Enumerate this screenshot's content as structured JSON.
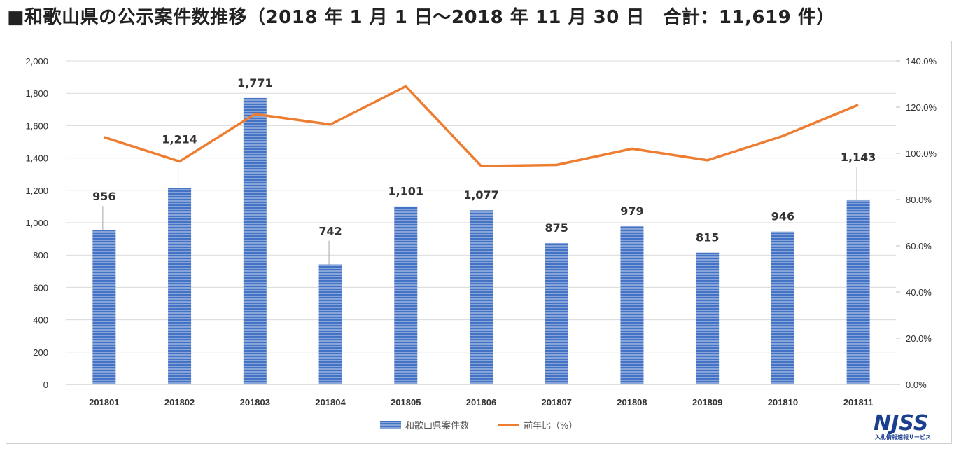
{
  "title": "■和歌山県の公示案件数推移（2018 年 1 月 1 日～2018 年 11 月 30 日　合計：11,619 件）",
  "colors": {
    "bar": "#4472c4",
    "line": "#ed7d31",
    "grid": "#d9d9d9"
  },
  "chart_data": {
    "type": "bar",
    "categories": [
      "201801",
      "201802",
      "201803",
      "201804",
      "201805",
      "201806",
      "201807",
      "201808",
      "201809",
      "201810",
      "201811"
    ],
    "series": [
      {
        "name": "和歌山県案件数",
        "type": "bar",
        "axis": "left",
        "values": [
          956,
          1214,
          1771,
          742,
          1101,
          1077,
          875,
          979,
          815,
          946,
          1143
        ],
        "labels": [
          "956",
          "1,214",
          "1,771",
          "742",
          "1,101",
          "1,077",
          "875",
          "979",
          "815",
          "946",
          "1,143"
        ]
      },
      {
        "name": "前年比（%）",
        "type": "line",
        "axis": "right",
        "values": [
          107,
          96.5,
          117,
          112.5,
          129,
          94.5,
          95,
          102,
          97,
          107.5,
          121
        ]
      }
    ],
    "y_left": {
      "ylim": [
        0,
        2000
      ],
      "ticks": [
        "0",
        "200",
        "400",
        "600",
        "800",
        "1,000",
        "1,200",
        "1,400",
        "1,600",
        "1,800",
        "2,000"
      ]
    },
    "y_right": {
      "ylim": [
        0,
        140
      ],
      "ticks": [
        "0.0%",
        "20.0%",
        "40.0%",
        "60.0%",
        "80.0%",
        "100.0%",
        "120.0%",
        "140.0%"
      ]
    },
    "grid": true,
    "legend": "bottom"
  },
  "logo": {
    "text": "NJSS",
    "subtitle": "入札情報速報サービス"
  }
}
